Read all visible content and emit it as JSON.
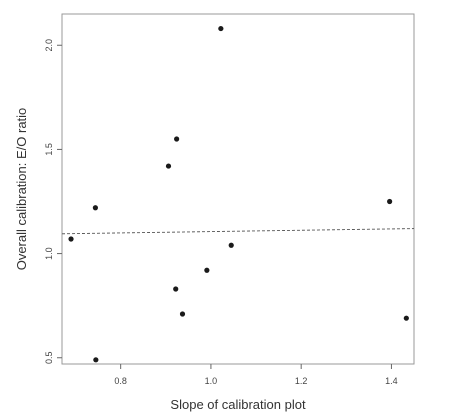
{
  "chart_data": {
    "type": "scatter",
    "title": "",
    "xlabel": "Slope of calibration plot",
    "ylabel": "Overall calibration: E/O ratio",
    "xlim": [
      0.67,
      1.45
    ],
    "ylim": [
      0.47,
      2.15
    ],
    "x_ticks": [
      0.8,
      1.0,
      1.2,
      1.4
    ],
    "x_tick_labels": [
      "0.8",
      "1.0",
      "1.2",
      "1.4"
    ],
    "y_ticks": [
      0.5,
      1.0,
      1.5,
      2.0
    ],
    "y_tick_labels": [
      "0.5",
      "1.0",
      "1.5",
      "2.0"
    ],
    "grid": false,
    "points": [
      {
        "x": 1.022,
        "y": 2.08
      },
      {
        "x": 0.924,
        "y": 1.55
      },
      {
        "x": 0.906,
        "y": 1.42
      },
      {
        "x": 1.396,
        "y": 1.25
      },
      {
        "x": 0.744,
        "y": 1.22
      },
      {
        "x": 0.69,
        "y": 1.07
      },
      {
        "x": 1.045,
        "y": 1.04
      },
      {
        "x": 0.991,
        "y": 0.92
      },
      {
        "x": 0.922,
        "y": 0.83
      },
      {
        "x": 0.937,
        "y": 0.71
      },
      {
        "x": 1.433,
        "y": 0.69
      },
      {
        "x": 0.745,
        "y": 0.49
      }
    ],
    "reference_line": {
      "style": "dashed",
      "x": [
        0.67,
        1.45
      ],
      "y": [
        1.095,
        1.12
      ]
    }
  }
}
